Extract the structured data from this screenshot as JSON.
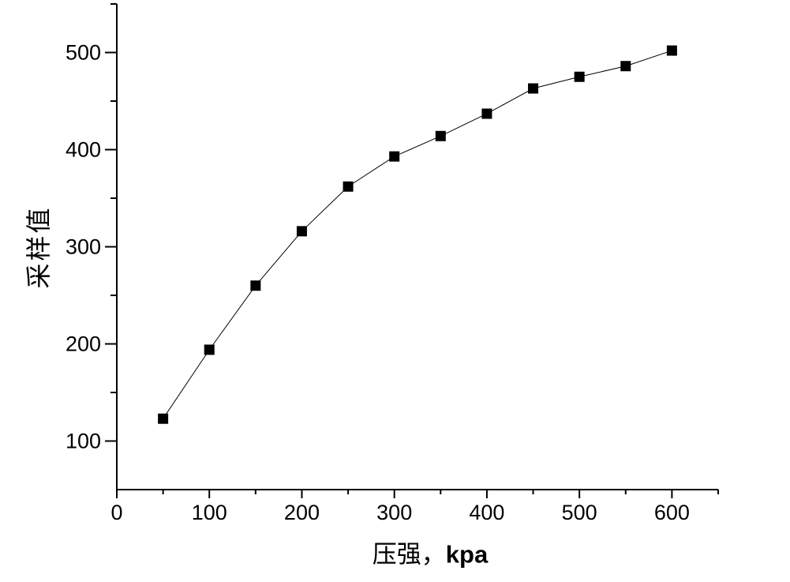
{
  "chart_data": {
    "type": "line",
    "title": "",
    "xlabel": "压强，kpa",
    "xlabel_cjk": "压强，",
    "xlabel_latin": "kpa",
    "ylabel": "采样值",
    "xlim": [
      0,
      650
    ],
    "ylim": [
      50,
      550
    ],
    "x_major_ticks": [
      0,
      100,
      200,
      300,
      400,
      500,
      600
    ],
    "x_minor_ticks": [
      50,
      150,
      250,
      350,
      450,
      550,
      650
    ],
    "y_major_ticks": [
      100,
      200,
      300,
      400,
      500
    ],
    "y_minor_ticks": [
      150,
      250,
      350,
      450,
      550
    ],
    "grid": false,
    "legend": false,
    "marker": "square",
    "marker_size": 13,
    "colors": {
      "axis": "#000000",
      "line": "#000000",
      "marker": "#000000",
      "text": "#000000",
      "background": "#ffffff"
    },
    "series": [
      {
        "name": "采样值",
        "x": [
          50,
          100,
          150,
          200,
          250,
          300,
          350,
          400,
          450,
          500,
          550,
          600
        ],
        "values": [
          123,
          194,
          260,
          316,
          362,
          393,
          414,
          437,
          463,
          475,
          486,
          502
        ]
      }
    ]
  }
}
